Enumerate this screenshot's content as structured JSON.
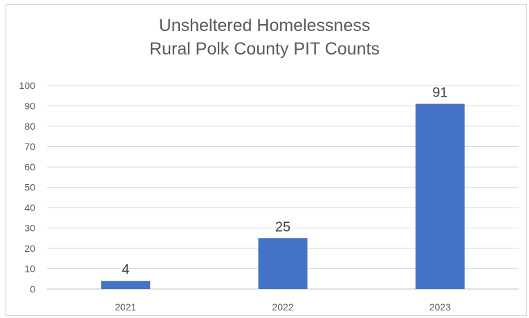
{
  "chart_data": {
    "type": "bar",
    "title": [
      "Unsheltered Homelessness",
      "Rural Polk County PIT Counts"
    ],
    "categories": [
      "2021",
      "2022",
      "2023"
    ],
    "values": [
      4,
      25,
      91
    ],
    "data_labels": [
      "4",
      "25",
      "91"
    ],
    "ylim": [
      0,
      100
    ],
    "yticks": [
      0,
      10,
      20,
      30,
      40,
      50,
      60,
      70,
      80,
      90,
      100
    ],
    "grid": true,
    "legend": "none",
    "colors": {
      "bar": "#4472c4",
      "grid": "#d9d9d9",
      "axis": "#bfbfbf",
      "text": "#595959",
      "data_label": "#404040"
    }
  }
}
